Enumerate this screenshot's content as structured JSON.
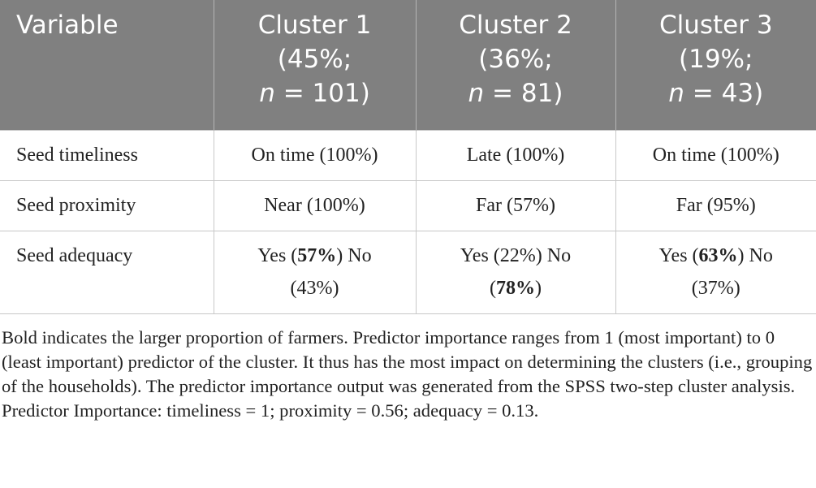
{
  "table": {
    "header": [
      [
        [
          {
            "text": "Variable"
          }
        ]
      ],
      [
        [
          {
            "text": "Cluster 1"
          }
        ],
        [
          {
            "text": "(45%;"
          }
        ],
        [
          {
            "text": "n",
            "italic": true
          },
          {
            "text": " = 101)"
          }
        ]
      ],
      [
        [
          {
            "text": "Cluster 2"
          }
        ],
        [
          {
            "text": "(36%;"
          }
        ],
        [
          {
            "text": "n",
            "italic": true
          },
          {
            "text": " = 81)"
          }
        ]
      ],
      [
        [
          {
            "text": "Cluster 3"
          }
        ],
        [
          {
            "text": "(19%;"
          }
        ],
        [
          {
            "text": "n",
            "italic": true
          },
          {
            "text": " = 43)"
          }
        ]
      ]
    ],
    "rows": [
      [
        [
          [
            {
              "text": "Seed timeliness"
            }
          ]
        ],
        [
          [
            {
              "text": "On time (100%)"
            }
          ]
        ],
        [
          [
            {
              "text": "Late (100%)"
            }
          ]
        ],
        [
          [
            {
              "text": "On time (100%)"
            }
          ]
        ]
      ],
      [
        [
          [
            {
              "text": "Seed proximity"
            }
          ]
        ],
        [
          [
            {
              "text": "Near (100%)"
            }
          ]
        ],
        [
          [
            {
              "text": "Far (57%)"
            }
          ]
        ],
        [
          [
            {
              "text": "Far (95%)"
            }
          ]
        ]
      ],
      [
        [
          [
            {
              "text": "Seed adequacy"
            }
          ]
        ],
        [
          [
            {
              "text": "Yes ("
            },
            {
              "text": "57%",
              "bold": true
            },
            {
              "text": ") No"
            }
          ],
          [
            {
              "text": "(43%)"
            }
          ]
        ],
        [
          [
            {
              "text": "Yes (22%) No"
            }
          ],
          [
            {
              "text": "("
            },
            {
              "text": "78%",
              "bold": true
            },
            {
              "text": ")"
            }
          ]
        ],
        [
          [
            {
              "text": "Yes ("
            },
            {
              "text": "63%",
              "bold": true
            },
            {
              "text": ") No"
            }
          ],
          [
            {
              "text": "(37%)"
            }
          ]
        ]
      ]
    ]
  },
  "footnote": "Bold indicates the larger proportion of farmers. Predictor importance ranges from 1 (most important) to 0 (least important) predictor of the cluster. It thus has the most impact on determining the clusters (i.e., grouping of the households). The predictor importance output was generated from the SPSS two-step cluster analysis. Predictor Importance: timeliness = 1; proximity = 0.56; adequacy = 0.13."
}
